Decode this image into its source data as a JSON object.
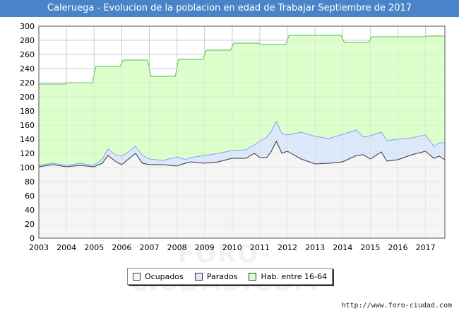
{
  "chart_data": {
    "type": "area",
    "title": "Caleruega - Evolucion de la poblacion en edad de Trabajar Septiembre de 2017",
    "xlabel": "",
    "ylabel": "",
    "xlim": [
      2003,
      2017.7
    ],
    "ylim": [
      0,
      300
    ],
    "x_ticks": [
      2003,
      2004,
      2005,
      2006,
      2007,
      2008,
      2009,
      2010,
      2011,
      2012,
      2013,
      2014,
      2015,
      2016,
      2017
    ],
    "y_ticks": [
      0,
      20,
      40,
      60,
      80,
      100,
      120,
      140,
      160,
      180,
      200,
      220,
      240,
      260,
      280,
      300
    ],
    "grid": true,
    "legend_position": "bottom-center",
    "series": [
      {
        "name": "Hab. entre 16-64",
        "color": "#ddffcc",
        "line": "#4dbf4d",
        "step": true,
        "x": [
          2003,
          2004,
          2005,
          2006,
          2007,
          2008,
          2009,
          2010,
          2011,
          2012,
          2013,
          2014,
          2015,
          2016,
          2017
        ],
        "values": [
          218,
          220,
          243,
          252,
          229,
          253,
          266,
          276,
          274,
          287,
          287,
          277,
          285,
          285,
          286
        ]
      },
      {
        "name": "Parados",
        "color": "#dde9fb",
        "line": "#7aa7e8",
        "x": [
          2003,
          2003.5,
          2004,
          2004.5,
          2005,
          2005.3,
          2005.5,
          2005.8,
          2006,
          2006.25,
          2006.5,
          2006.75,
          2007,
          2007.5,
          2008,
          2008.3,
          2008.5,
          2009,
          2009.5,
          2010,
          2010.5,
          2010.8,
          2011,
          2011.25,
          2011.4,
          2011.6,
          2011.8,
          2012,
          2012.5,
          2013,
          2013.5,
          2014,
          2014.5,
          2014.75,
          2015,
          2015.4,
          2015.6,
          2016,
          2016.5,
          2017,
          2017.3,
          2017.5,
          2017.7
        ],
        "values": [
          103,
          106,
          103,
          106,
          103,
          112,
          126,
          117,
          116,
          122,
          130,
          117,
          112,
          110,
          115,
          111,
          114,
          117,
          120,
          124,
          125,
          132,
          137,
          143,
          150,
          165,
          148,
          146,
          150,
          144,
          141,
          147,
          153,
          143,
          145,
          150,
          138,
          140,
          142,
          146,
          130,
          135,
          135
        ]
      },
      {
        "name": "Ocupados",
        "color": "#f5f5f5",
        "line": "#333333",
        "x": [
          2003,
          2003.5,
          2004,
          2004.5,
          2005,
          2005.3,
          2005.5,
          2005.8,
          2006,
          2006.25,
          2006.5,
          2006.75,
          2007,
          2007.5,
          2008,
          2008.3,
          2008.5,
          2009,
          2009.5,
          2010,
          2010.5,
          2010.8,
          2011,
          2011.25,
          2011.4,
          2011.6,
          2011.8,
          2012,
          2012.5,
          2013,
          2013.5,
          2014,
          2014.5,
          2014.75,
          2015,
          2015.4,
          2015.6,
          2016,
          2016.5,
          2017,
          2017.3,
          2017.5,
          2017.7
        ],
        "values": [
          101,
          104,
          101,
          103,
          101,
          106,
          117,
          108,
          104,
          112,
          120,
          106,
          104,
          104,
          102,
          106,
          108,
          106,
          108,
          113,
          113,
          120,
          114,
          114,
          122,
          137,
          120,
          123,
          112,
          105,
          106,
          108,
          117,
          118,
          112,
          122,
          109,
          111,
          118,
          123,
          113,
          116,
          111
        ]
      }
    ]
  },
  "legend": {
    "items": [
      {
        "label": "Ocupados",
        "color": "#f5f5f5"
      },
      {
        "label": "Parados",
        "color": "#dde9fb"
      },
      {
        "label": "Hab. entre 16-64",
        "color": "#ddffcc"
      }
    ]
  },
  "footer": {
    "source": "http://www.foro-ciudad.com",
    "watermark": "FORO-CIUDAD.COM"
  }
}
